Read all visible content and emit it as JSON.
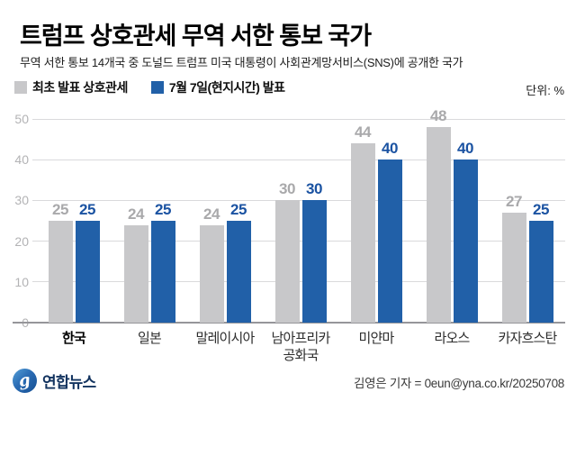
{
  "header": {
    "title": "트럼프 상호관세 무역 서한 통보 국가",
    "subtitle": "무역 서한 통보 14개국 중 도널드 트럼프 미국 대통령이 사회관계망서비스(SNS)에 공개한 국가"
  },
  "legend": {
    "items": [
      {
        "label": "최초 발표 상호관세",
        "color": "#c8c8ca"
      },
      {
        "label": "7월 7일(현지시간) 발표",
        "color": "#2160a8"
      }
    ],
    "unit_label": "단위: %"
  },
  "chart_data": {
    "type": "bar",
    "title": "트럼프 상호관세 무역 서한 통보 국가",
    "categories": [
      "한국",
      "일본",
      "말레이시아",
      "남아프리카\n공화국",
      "미얀마",
      "라오스",
      "카자흐스탄"
    ],
    "series": [
      {
        "name": "최초 발표 상호관세",
        "color": "#c8c8ca",
        "value_label_color": "#a9a9ab",
        "values": [
          25,
          24,
          24,
          30,
          44,
          48,
          27
        ]
      },
      {
        "name": "7월 7일(현지시간) 발표",
        "color": "#2160a8",
        "value_label_color": "#1b53a2",
        "values": [
          25,
          25,
          25,
          30,
          40,
          40,
          25
        ]
      }
    ],
    "ylim": [
      0,
      50
    ],
    "yticks": [
      0,
      10,
      20,
      30,
      40,
      50
    ],
    "grid": true,
    "legend_position": "top",
    "emphasized_category": "한국",
    "unit": "%"
  },
  "footer": {
    "logo_text": "연합뉴스",
    "logo_glyph": "g",
    "logo_blue": "#2a6cb4",
    "logo_navy": "#12335f",
    "credit": "김영은 기자 = 0eun@yna.co.kr/20250708"
  }
}
